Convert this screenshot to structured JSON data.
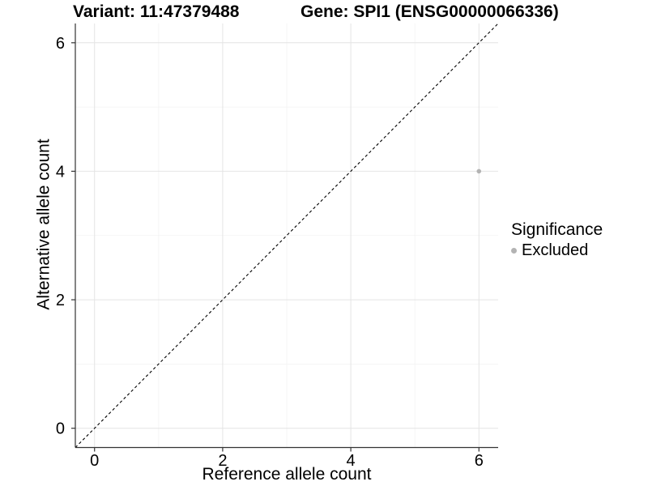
{
  "chart_data": {
    "type": "scatter",
    "title_left": "Variant: 11:47379488",
    "title_right": "Gene: SPI1 (ENSG00000066336)",
    "xlabel": "Reference allele count",
    "ylabel": "Alternative allele count",
    "xlim": [
      -0.3,
      6.3
    ],
    "ylim": [
      -0.3,
      6.3
    ],
    "x_ticks": [
      0,
      2,
      4,
      6
    ],
    "y_ticks": [
      0,
      2,
      4,
      6
    ],
    "x_minor_ticks": [
      1,
      3,
      5
    ],
    "y_minor_ticks": [
      1,
      3,
      5
    ],
    "grid": "major+minor",
    "legend": {
      "title": "Significance",
      "position": "right",
      "items": [
        {
          "label": "Excluded",
          "color": "#b3b3b3"
        }
      ]
    },
    "series": [
      {
        "name": "Excluded",
        "color": "#b3b3b3",
        "points": [
          [
            6,
            4
          ]
        ]
      }
    ],
    "reference_line": {
      "style": "dashed",
      "slope": 1,
      "intercept": 0,
      "color": "#000000"
    }
  },
  "colors": {
    "background": "#ffffff",
    "axis": "#333333",
    "text": "#000000",
    "grid_major": "#e4e4e4",
    "grid_minor": "#f2f2f2"
  }
}
